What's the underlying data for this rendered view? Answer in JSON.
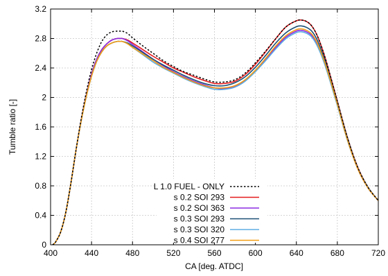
{
  "chart_data": {
    "type": "line",
    "title": "",
    "xlabel": "CA [deg. ATDC]",
    "ylabel": "Tumble ratio [-]",
    "xlim": [
      400,
      720
    ],
    "ylim": [
      0,
      3.2
    ],
    "xticks": [
      "400",
      "440",
      "480",
      "520",
      "560",
      "600",
      "640",
      "680",
      "720"
    ],
    "yticks": [
      "0",
      "0.4",
      "0.8",
      "1.2",
      "1.6",
      "2",
      "2.4",
      "2.8",
      "3.2"
    ],
    "grid": true,
    "legend_position": "bottom-center",
    "series": [
      {
        "name": "L 1.0 FUEL - ONLY",
        "color": "#000000",
        "dash": "dotted",
        "x": [
          402,
          405,
          410,
          415,
          420,
          425,
          430,
          435,
          440,
          445,
          450,
          455,
          460,
          465,
          468,
          470,
          475,
          480,
          490,
          500,
          510,
          520,
          530,
          540,
          550,
          560,
          570,
          580,
          590,
          600,
          610,
          620,
          630,
          640,
          645,
          650,
          655,
          660,
          665,
          670,
          680,
          690,
          700,
          710,
          720
        ],
        "y": [
          0,
          0.04,
          0.18,
          0.45,
          0.85,
          1.3,
          1.72,
          2.08,
          2.38,
          2.6,
          2.76,
          2.85,
          2.89,
          2.9,
          2.9,
          2.9,
          2.87,
          2.81,
          2.7,
          2.6,
          2.5,
          2.42,
          2.35,
          2.3,
          2.25,
          2.21,
          2.21,
          2.24,
          2.33,
          2.47,
          2.63,
          2.8,
          2.96,
          3.04,
          3.05,
          3.03,
          2.97,
          2.85,
          2.67,
          2.45,
          1.95,
          1.45,
          1.05,
          0.78,
          0.6
        ]
      },
      {
        "name": "s 0.2 SOI 293",
        "color": "#e41a1c",
        "dash": "solid",
        "x": [
          402,
          405,
          410,
          415,
          420,
          425,
          430,
          435,
          440,
          445,
          450,
          455,
          460,
          465,
          468,
          470,
          475,
          480,
          490,
          500,
          510,
          520,
          530,
          540,
          550,
          560,
          570,
          580,
          590,
          600,
          610,
          620,
          630,
          640,
          645,
          650,
          655,
          660,
          665,
          670,
          680,
          690,
          700,
          710,
          720
        ],
        "y": [
          0,
          0.04,
          0.18,
          0.45,
          0.85,
          1.3,
          1.7,
          2.04,
          2.32,
          2.52,
          2.65,
          2.73,
          2.78,
          2.8,
          2.8,
          2.8,
          2.78,
          2.74,
          2.65,
          2.56,
          2.48,
          2.4,
          2.34,
          2.28,
          2.23,
          2.19,
          2.19,
          2.22,
          2.31,
          2.45,
          2.62,
          2.8,
          2.96,
          3.04,
          3.05,
          3.03,
          2.97,
          2.85,
          2.67,
          2.45,
          1.95,
          1.45,
          1.05,
          0.78,
          0.6
        ]
      },
      {
        "name": "s 0.2 SOI 363",
        "color": "#8a2be2",
        "dash": "solid",
        "x": [
          402,
          405,
          410,
          415,
          420,
          425,
          430,
          435,
          440,
          445,
          450,
          455,
          460,
          465,
          468,
          470,
          475,
          480,
          490,
          500,
          510,
          520,
          530,
          540,
          550,
          560,
          570,
          580,
          590,
          600,
          610,
          620,
          630,
          640,
          645,
          650,
          655,
          660,
          665,
          670,
          680,
          690,
          700,
          710,
          720
        ],
        "y": [
          0,
          0.04,
          0.18,
          0.45,
          0.85,
          1.3,
          1.7,
          2.04,
          2.32,
          2.52,
          2.65,
          2.73,
          2.78,
          2.8,
          2.8,
          2.8,
          2.77,
          2.72,
          2.62,
          2.52,
          2.43,
          2.35,
          2.28,
          2.22,
          2.17,
          2.13,
          2.12,
          2.15,
          2.23,
          2.36,
          2.52,
          2.68,
          2.82,
          2.9,
          2.91,
          2.89,
          2.84,
          2.73,
          2.57,
          2.37,
          1.9,
          1.42,
          1.03,
          0.77,
          0.6
        ]
      },
      {
        "name": "s 0.3 SOI 293",
        "color": "#1b4f72",
        "dash": "solid",
        "x": [
          402,
          405,
          410,
          415,
          420,
          425,
          430,
          435,
          440,
          445,
          450,
          455,
          460,
          465,
          468,
          470,
          475,
          480,
          490,
          500,
          510,
          520,
          530,
          540,
          550,
          560,
          570,
          580,
          590,
          600,
          610,
          620,
          630,
          640,
          645,
          650,
          655,
          660,
          665,
          670,
          680,
          690,
          700,
          710,
          720
        ],
        "y": [
          0,
          0.04,
          0.18,
          0.45,
          0.85,
          1.3,
          1.69,
          2.02,
          2.29,
          2.49,
          2.62,
          2.7,
          2.74,
          2.76,
          2.76,
          2.76,
          2.74,
          2.7,
          2.61,
          2.52,
          2.44,
          2.37,
          2.3,
          2.24,
          2.19,
          2.16,
          2.16,
          2.2,
          2.28,
          2.41,
          2.57,
          2.74,
          2.88,
          2.96,
          2.97,
          2.95,
          2.9,
          2.79,
          2.62,
          2.41,
          1.93,
          1.44,
          1.04,
          0.78,
          0.6
        ]
      },
      {
        "name": "s 0.3 SOI 320",
        "color": "#5dade2",
        "dash": "solid",
        "x": [
          402,
          405,
          410,
          415,
          420,
          425,
          430,
          435,
          440,
          445,
          450,
          455,
          460,
          465,
          468,
          470,
          475,
          480,
          490,
          500,
          510,
          520,
          530,
          540,
          550,
          560,
          570,
          580,
          590,
          600,
          610,
          620,
          630,
          640,
          645,
          650,
          655,
          660,
          665,
          670,
          680,
          690,
          700,
          710,
          720
        ],
        "y": [
          0,
          0.04,
          0.18,
          0.45,
          0.85,
          1.3,
          1.69,
          2.02,
          2.29,
          2.49,
          2.62,
          2.7,
          2.74,
          2.76,
          2.76,
          2.76,
          2.73,
          2.68,
          2.58,
          2.48,
          2.4,
          2.33,
          2.26,
          2.2,
          2.15,
          2.11,
          2.11,
          2.14,
          2.22,
          2.35,
          2.5,
          2.66,
          2.8,
          2.88,
          2.89,
          2.87,
          2.82,
          2.71,
          2.55,
          2.35,
          1.89,
          1.41,
          1.03,
          0.77,
          0.6
        ]
      },
      {
        "name": "s 0.4 SOI 277",
        "color": "#f39c12",
        "dash": "solid",
        "x": [
          402,
          405,
          410,
          415,
          420,
          425,
          430,
          435,
          440,
          445,
          450,
          455,
          460,
          465,
          468,
          470,
          475,
          480,
          490,
          500,
          510,
          520,
          530,
          540,
          550,
          560,
          570,
          580,
          590,
          600,
          610,
          620,
          630,
          640,
          645,
          650,
          655,
          660,
          665,
          670,
          680,
          690,
          700,
          710,
          720
        ],
        "y": [
          0,
          0.04,
          0.18,
          0.45,
          0.85,
          1.3,
          1.69,
          2.02,
          2.29,
          2.49,
          2.62,
          2.7,
          2.74,
          2.76,
          2.76,
          2.76,
          2.73,
          2.68,
          2.59,
          2.5,
          2.41,
          2.34,
          2.27,
          2.21,
          2.16,
          2.13,
          2.13,
          2.16,
          2.24,
          2.37,
          2.53,
          2.7,
          2.84,
          2.92,
          2.93,
          2.91,
          2.86,
          2.75,
          2.58,
          2.38,
          1.91,
          1.42,
          1.03,
          0.77,
          0.6
        ]
      }
    ]
  }
}
